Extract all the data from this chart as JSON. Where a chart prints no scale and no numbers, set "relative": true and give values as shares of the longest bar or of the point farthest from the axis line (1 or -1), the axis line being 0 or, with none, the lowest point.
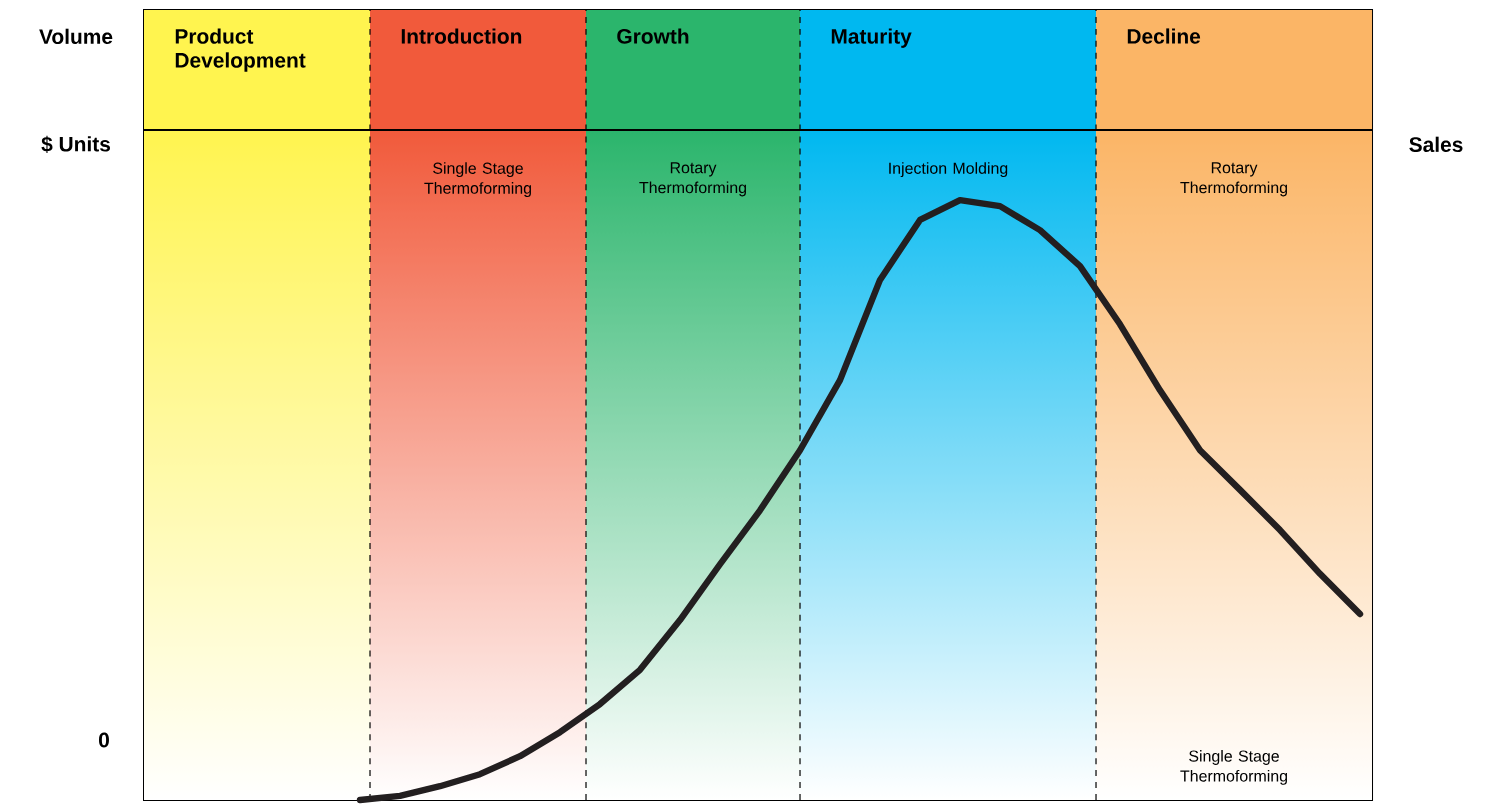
{
  "chart_data": {
    "type": "line",
    "relative": true,
    "categories": [
      null,
      null,
      null,
      null,
      null,
      null,
      null,
      null,
      null,
      null,
      null,
      null,
      null,
      null,
      null,
      null,
      null,
      null,
      null,
      null,
      null,
      null,
      null,
      null,
      null,
      null,
      null,
      null,
      null,
      null,
      null
    ],
    "series": [
      {
        "name": "Sales",
        "color": "#231f20",
        "values": [
          null,
          null,
          null,
          null,
          null,
          0,
          0.007,
          0.023,
          0.043,
          0.073,
          0.113,
          0.16,
          0.217,
          0.3,
          0.393,
          0.483,
          0.583,
          0.7,
          0.867,
          0.967,
          1.0,
          0.99,
          0.95,
          0.89,
          0.793,
          0.683,
          0.583,
          0.517,
          0.45,
          0.377,
          0.31
        ]
      }
    ],
    "annotations": [
      "Product Development",
      "Introduction",
      "Growth",
      "Maturity",
      "Decline",
      "Single Stage Thermoforming",
      "Rotary Thermoforming",
      "Injection Molding",
      "Rotary Thermoforming",
      "Single Stage Thermoforming",
      "Volume",
      "$ Units",
      "0"
    ],
    "marker": "none",
    "line_style": "solid"
  }
}
